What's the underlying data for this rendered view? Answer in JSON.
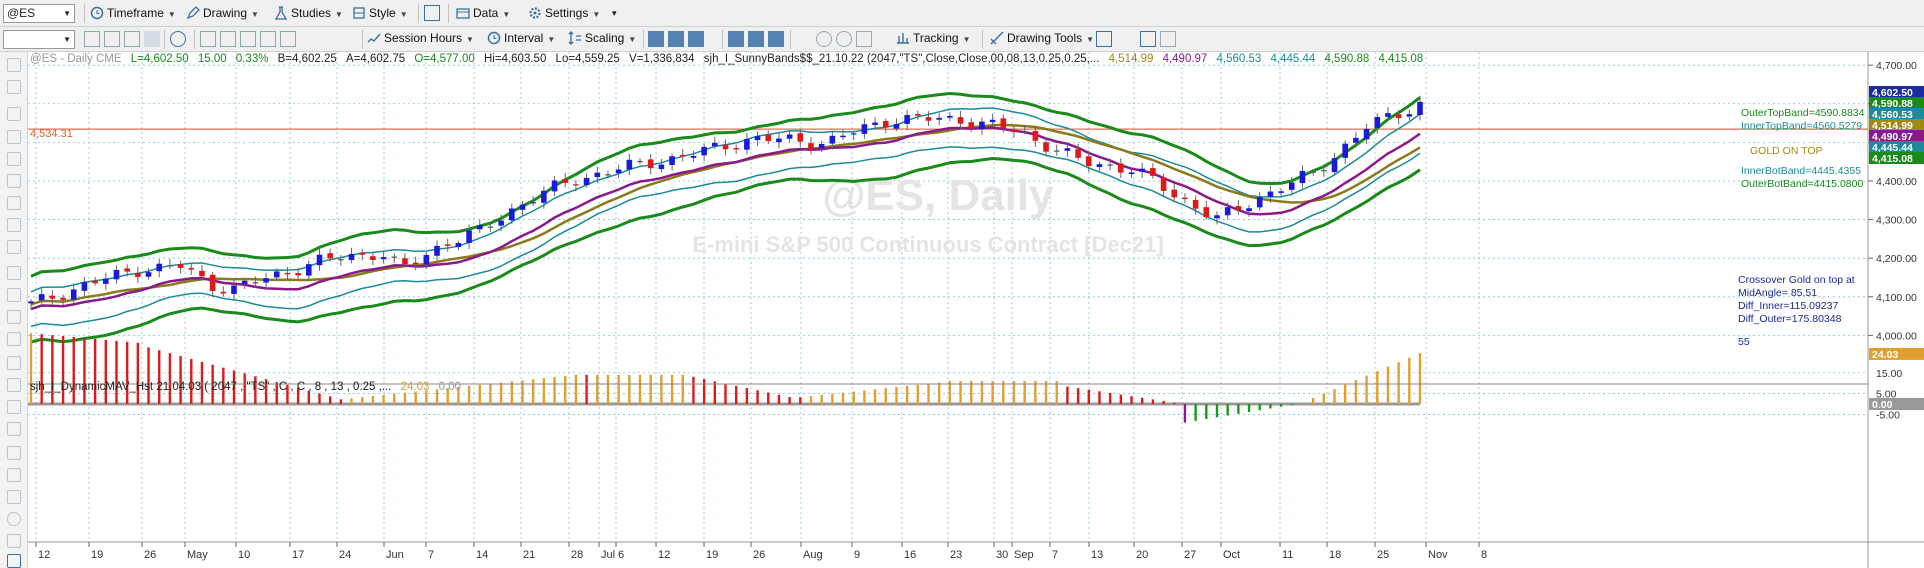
{
  "toolbar": {
    "symbol": "@ES",
    "timeframe": "Timeframe",
    "drawing": "Drawing",
    "studies": "Studies",
    "style": "Style",
    "data": "Data",
    "settings": "Settings",
    "session_hours": "Session Hours",
    "interval": "Interval",
    "scaling": "Scaling",
    "tracking": "Tracking",
    "drawing_tools": "Drawing Tools"
  },
  "header": {
    "symbol_info": "@ES - Daily  CME",
    "last": "L=4,602.50",
    "change": "15.00",
    "pct": "0.33%",
    "bid": "B=4,602.25",
    "ask": "A=4,602.75",
    "open": "O=4,577.00",
    "high": "Hi=4,603.50",
    "low": "Lo=4,559.25",
    "volume": "V=1,336,834",
    "study_name": "sjh_I_SunnyBands$$_21.10.22 (2047,\"TS\",Close,Close,00,08,13,0.25,0.25,...",
    "sv1": "4,514.99",
    "sv2": "4,490.97",
    "sv3": "4,560.53",
    "sv4": "4,445.44",
    "sv5": "4,590.88",
    "sv6": "4,415.08"
  },
  "watermark": {
    "line1": "@ES, Daily",
    "line2": "E-mini S&P 500 Continuous Contract [Dec21]"
  },
  "hline_label": "4,534.31",
  "right_texts": {
    "outer_top": "OuterTopBand=4590.8834",
    "inner_top": "InnerTopBand=4560.5279",
    "gold_on_top": "GOLD ON TOP",
    "inner_bot": "InnerBotBand=4445.4355",
    "outer_bot": "OuterBotBand=4415.0800",
    "crossover": "Crossover Gold on top at",
    "mid_angle": "MidAngle= 85.51",
    "diff_inner": "Diff_Inner=115.09237",
    "diff_outer": "Diff_Outer=175.80348",
    "count": "55"
  },
  "price_axis": {
    "ticks": [
      "4,700.00",
      "4,600.00",
      "4,500.00",
      "4,400.00",
      "4,300.00",
      "4,200.00",
      "4,100.00",
      "4,000.00"
    ],
    "tags": [
      "4,602.50",
      "4,590.88",
      "4,560.53",
      "4,514.99",
      "4,490.97",
      "4,445.44",
      "4,415.08"
    ]
  },
  "indicator": {
    "name": "sjh_I_DynamicMAV_Hst 21.04.03 ( 2047 , \"TS\" , C , C ,  8 , 13 , 0.25 ,...",
    "v1": "24.03",
    "v2": "0.00",
    "ticks": [
      "15.00",
      "5.00",
      "-5.00"
    ],
    "tags": [
      "24.03",
      "0.00"
    ]
  },
  "date_axis": [
    "12",
    "19",
    "26",
    "May",
    "10",
    "17",
    "24",
    "Jun",
    "7",
    "14",
    "21",
    "28",
    "Jul",
    "6",
    "12",
    "19",
    "26",
    "Aug",
    "9",
    "16",
    "23",
    "30",
    "Sep",
    "7",
    "13",
    "20",
    "27",
    "Oct",
    "11",
    "18",
    "25",
    "Nov",
    "8"
  ],
  "colors": {
    "up": "#1a1adb",
    "down": "#e01818",
    "outer": "#1a8a1a",
    "inner": "#1b8a9a",
    "gold": "#8a7a1a",
    "mid": "#8a1a8a",
    "hist_gold": "#e0a030",
    "hist_red": "#e01818",
    "hist_green": "#1a9a1a",
    "hist_purple": "#8a1a9a"
  },
  "chart_data": {
    "type": "candlestick",
    "price_ylim": [
      3900,
      4760
    ],
    "hline": 4534.31,
    "bands": {
      "outer_top_end": 4590.88,
      "inner_top_end": 4560.53,
      "gold_end": 4514.99,
      "mid_end": 4490.97,
      "inner_bot_end": 4445.44,
      "outer_bot_end": 4415.08
    },
    "last_price": 4602.5,
    "indicator_ylim": [
      -13,
      34
    ]
  }
}
